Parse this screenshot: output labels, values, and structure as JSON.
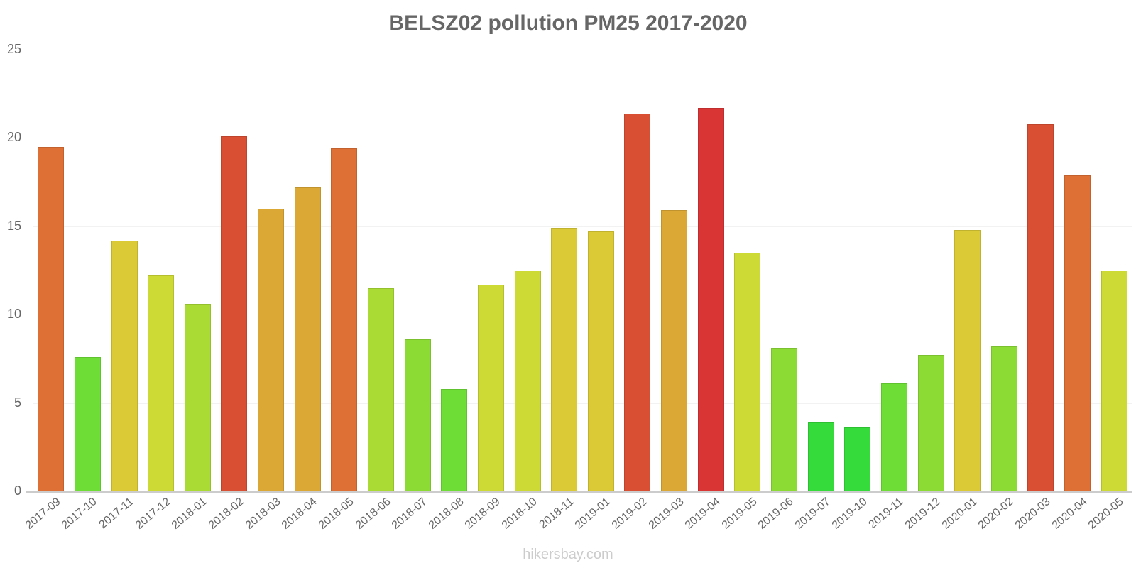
{
  "chart_data": {
    "type": "bar",
    "title": "BELSZ02 pollution PM25 2017-2020",
    "xlabel": "",
    "ylabel": "",
    "ylim": [
      0,
      25
    ],
    "yticks": [
      0,
      5,
      10,
      15,
      20,
      25
    ],
    "grid": true,
    "legend": null,
    "categories": [
      "2017-09",
      "2017-10",
      "2017-11",
      "2017-12",
      "2018-01",
      "2018-02",
      "2018-03",
      "2018-04",
      "2018-05",
      "2018-06",
      "2018-07",
      "2018-08",
      "2018-09",
      "2018-10",
      "2018-11",
      "2019-01",
      "2019-02",
      "2019-03",
      "2019-04",
      "2019-05",
      "2019-06",
      "2019-07",
      "2019-10",
      "2019-11",
      "2019-12",
      "2020-01",
      "2020-02",
      "2020-03",
      "2020-04",
      "2020-05"
    ],
    "values": [
      19.5,
      7.6,
      14.2,
      12.2,
      10.6,
      20.1,
      16.0,
      17.2,
      19.4,
      11.5,
      8.6,
      5.8,
      11.7,
      12.5,
      14.9,
      14.7,
      21.4,
      15.9,
      21.7,
      13.5,
      8.1,
      3.9,
      3.6,
      6.1,
      7.7,
      14.8,
      8.2,
      20.8,
      17.9,
      12.5
    ],
    "colors": [
      "#de6f35",
      "#6edd35",
      "#dbca35",
      "#cdd935",
      "#aadb35",
      "#d94f33",
      "#dba835",
      "#dba835",
      "#de6f35",
      "#aadb35",
      "#8cdb35",
      "#6edd35",
      "#cdd935",
      "#cdd935",
      "#dbca35",
      "#dbca35",
      "#d94f33",
      "#dba835",
      "#d93535",
      "#cdd935",
      "#8cdb35",
      "#35db3a",
      "#35db3a",
      "#6edd35",
      "#8cdb35",
      "#dbca35",
      "#8cdb35",
      "#d94f33",
      "#de6f35",
      "#cdd935"
    ]
  },
  "watermark": "hikersbay.com"
}
